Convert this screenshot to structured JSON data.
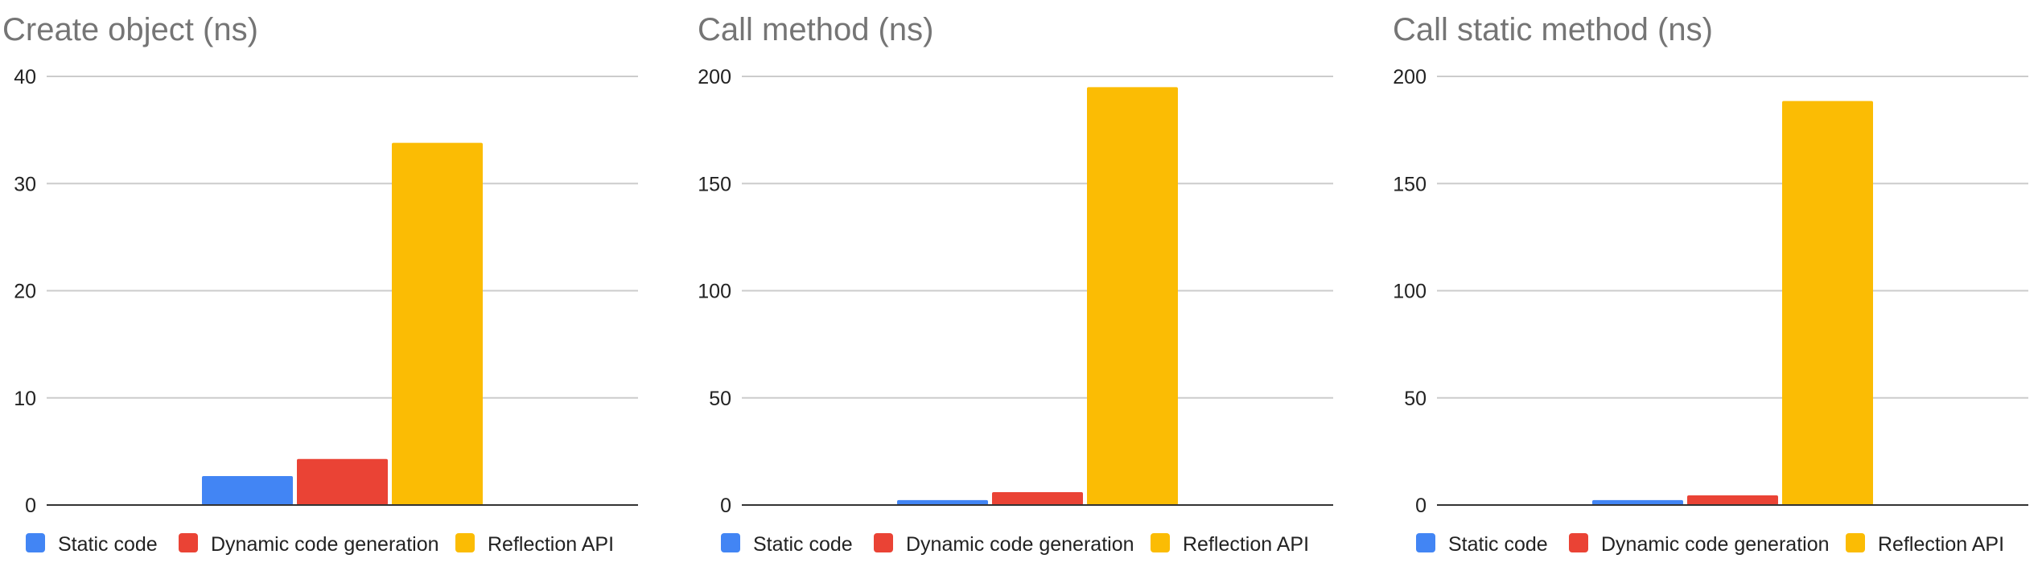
{
  "colors": {
    "static": "#4285F4",
    "dynamic": "#EA4335",
    "reflection": "#FBBC04",
    "grid": "#cccccc",
    "axis": "#333333",
    "title": "#757575",
    "tick": "#222222"
  },
  "chart_data": [
    {
      "type": "bar",
      "title": "Create object (ns)",
      "ylim": [
        0,
        40
      ],
      "yticks": [
        0,
        10,
        20,
        30,
        40
      ],
      "grid": true,
      "legend_position": "bottom",
      "series": [
        {
          "name": "Static code",
          "values": [
            2.7
          ]
        },
        {
          "name": "Dynamic code generation",
          "values": [
            4.3
          ]
        },
        {
          "name": "Reflection API",
          "values": [
            33.8
          ]
        }
      ]
    },
    {
      "type": "bar",
      "title": "Call method (ns)",
      "ylim": [
        0,
        200
      ],
      "yticks": [
        0,
        50,
        100,
        150,
        200
      ],
      "grid": true,
      "legend_position": "bottom",
      "series": [
        {
          "name": "Static code",
          "values": [
            2.3
          ]
        },
        {
          "name": "Dynamic code generation",
          "values": [
            6
          ]
        },
        {
          "name": "Reflection API",
          "values": [
            195
          ]
        }
      ]
    },
    {
      "type": "bar",
      "title": "Call static method (ns)",
      "ylim": [
        0,
        200
      ],
      "yticks": [
        0,
        50,
        100,
        150,
        200
      ],
      "grid": true,
      "legend_position": "bottom",
      "series": [
        {
          "name": "Static code",
          "values": [
            2.3
          ]
        },
        {
          "name": "Dynamic code generation",
          "values": [
            4.5
          ]
        },
        {
          "name": "Reflection API",
          "values": [
            188.5
          ]
        }
      ]
    }
  ]
}
